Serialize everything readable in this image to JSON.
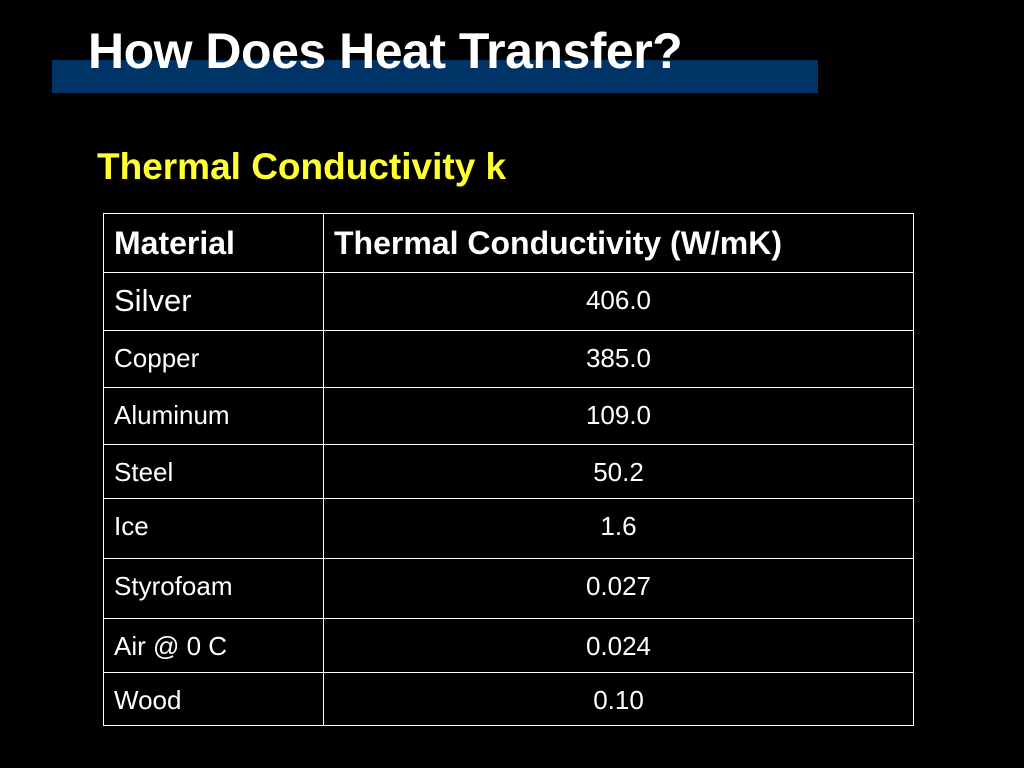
{
  "header": {
    "title": "How Does Heat Transfer?",
    "subtitle": "Thermal Conductivity k"
  },
  "table": {
    "columns": [
      "Material",
      "Thermal Conductivity (W/mK)"
    ],
    "rows": [
      [
        "Silver",
        "406.0"
      ],
      [
        "Copper",
        "385.0"
      ],
      [
        "Aluminum",
        "109.0"
      ],
      [
        "Steel",
        "50.2"
      ],
      [
        "Ice",
        "1.6"
      ],
      [
        "Styrofoam",
        "0.027"
      ],
      [
        "Air @ 0 C",
        "0.024"
      ],
      [
        "Wood",
        "0.10"
      ]
    ]
  }
}
